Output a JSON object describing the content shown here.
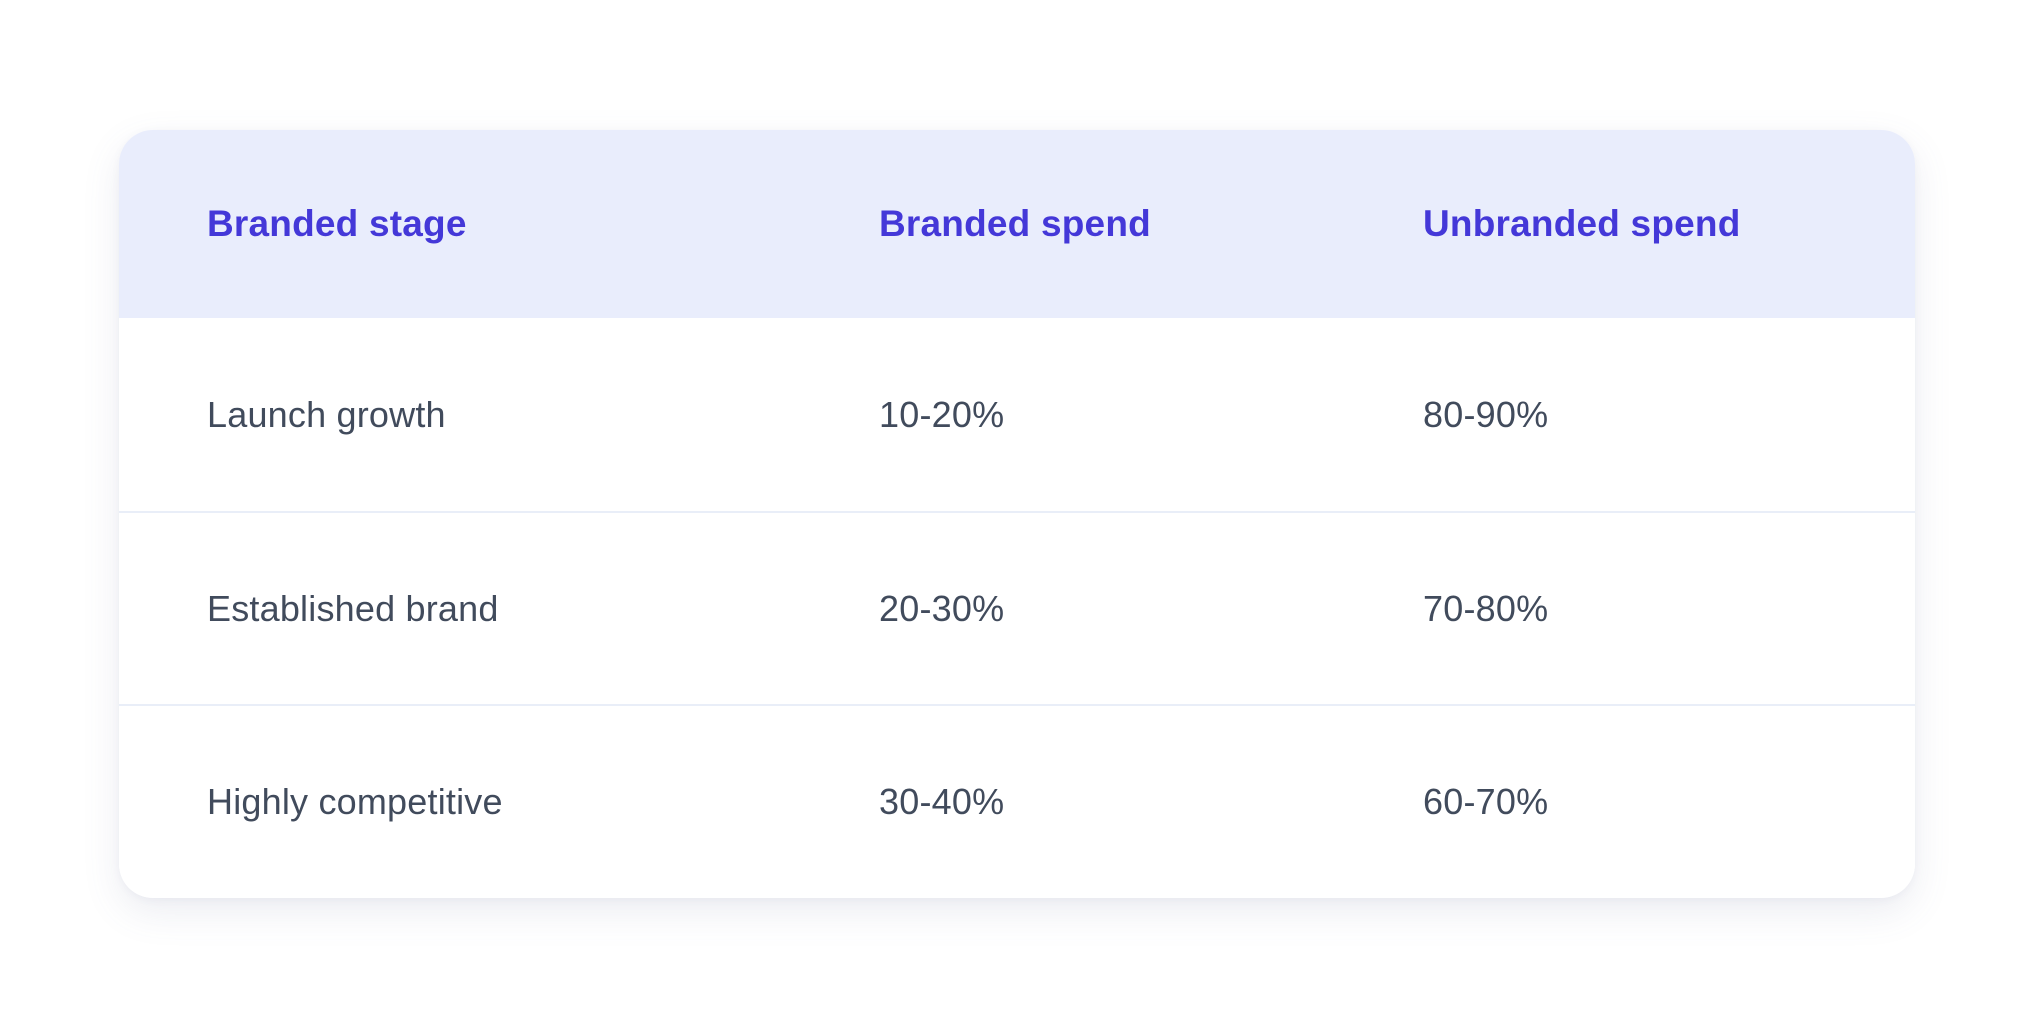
{
  "style": {
    "accent_color": "#4438d8",
    "header_background": "#e9edfc",
    "body_text_color": "#414b5c",
    "divider_color": "#e9eef8",
    "card_background": "#ffffff"
  },
  "chart_data": {
    "type": "table",
    "columns": [
      "Branded stage",
      "Branded spend",
      "Unbranded spend"
    ],
    "rows": [
      [
        "Launch growth",
        "10-20%",
        "80-90%"
      ],
      [
        "Established brand",
        "20-30%",
        "70-80%"
      ],
      [
        "Highly competitive",
        "30-40%",
        "60-70%"
      ]
    ]
  }
}
